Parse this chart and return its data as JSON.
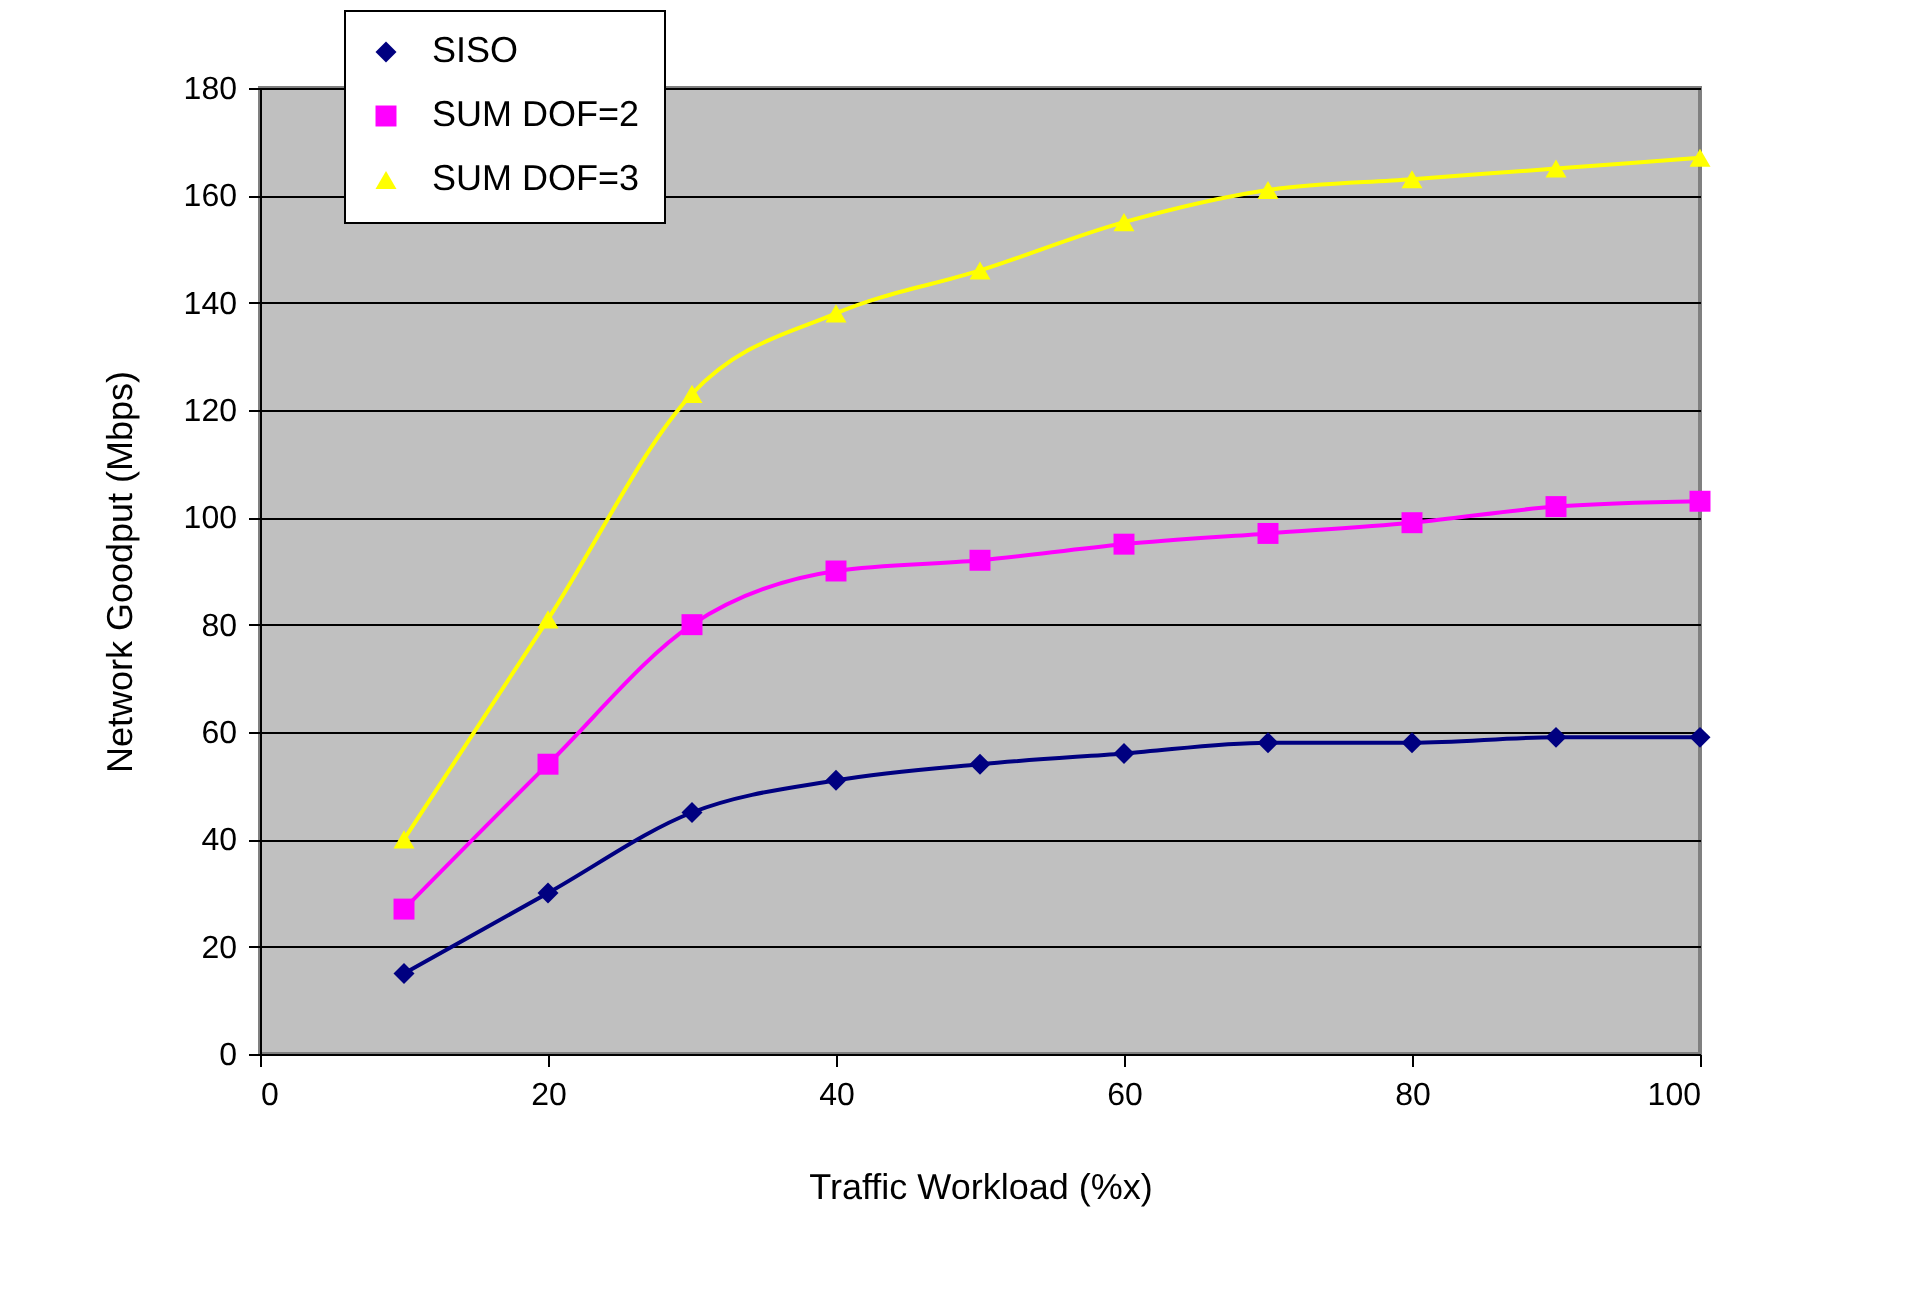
{
  "chart_data": {
    "type": "line",
    "xlabel": "Traffic Workload (%x)",
    "ylabel": "Network Goodput (Mbps)",
    "x": [
      10,
      20,
      30,
      40,
      50,
      60,
      70,
      80,
      90,
      100
    ],
    "series": [
      {
        "name": "SISO",
        "color": "#000080",
        "marker": "diamond",
        "values": [
          15,
          30,
          45,
          51,
          54,
          56,
          58,
          58,
          59,
          59
        ]
      },
      {
        "name": "SUM DOF=2",
        "color": "#ff00ff",
        "marker": "square",
        "values": [
          27,
          54,
          80,
          90,
          92,
          95,
          97,
          99,
          102,
          103
        ]
      },
      {
        "name": "SUM DOF=3",
        "color": "#ffff00",
        "marker": "triangle",
        "values": [
          40,
          81,
          123,
          138,
          146,
          155,
          161,
          163,
          165,
          167
        ]
      }
    ],
    "xlim": [
      0,
      100
    ],
    "xticks": [
      0,
      20,
      40,
      60,
      80,
      100
    ],
    "ylim": [
      0,
      180
    ],
    "yticks": [
      0,
      20,
      40,
      60,
      80,
      100,
      120,
      140,
      160,
      180
    ],
    "grid": "y",
    "legend": "top left",
    "line_style": "solid"
  }
}
